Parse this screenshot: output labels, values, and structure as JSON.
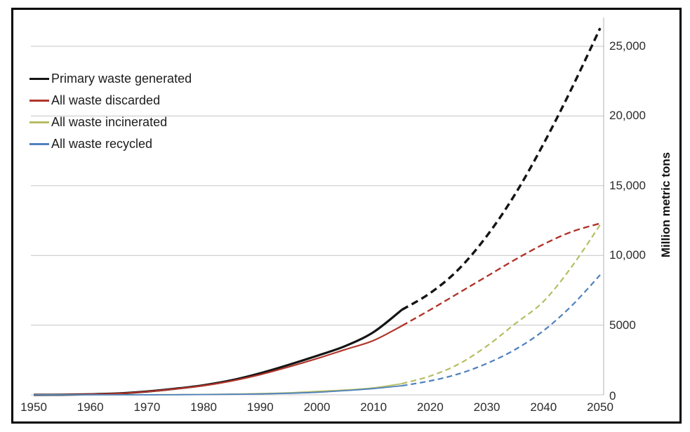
{
  "chart_data": {
    "type": "line",
    "title": "",
    "xlabel": "",
    "ylabel": "Million metric tons",
    "x": [
      1950,
      1955,
      1960,
      1965,
      1970,
      1975,
      1980,
      1985,
      1990,
      1995,
      2000,
      2005,
      2010,
      2015,
      2020,
      2025,
      2030,
      2035,
      2040,
      2045,
      2050
    ],
    "series": [
      {
        "name": "Primary waste generated",
        "color": "#141414",
        "solid_until": 2015,
        "solid_width": 3.2,
        "dash_width": 3.4,
        "dash": "10 6",
        "values": [
          1,
          8,
          40,
          100,
          240,
          440,
          690,
          1050,
          1550,
          2150,
          2800,
          3500,
          4500,
          6100,
          7300,
          9000,
          11400,
          14400,
          18000,
          22000,
          26300
        ]
      },
      {
        "name": "All waste discarded",
        "color": "#B0352B",
        "solid_until": 2015,
        "solid_width": 2.2,
        "dash_width": 2.4,
        "dash": "9 5",
        "values": [
          1,
          8,
          38,
          95,
          230,
          420,
          660,
          1000,
          1450,
          2000,
          2600,
          3250,
          3900,
          4950,
          6100,
          7300,
          8500,
          9700,
          10800,
          11700,
          12300
        ]
      },
      {
        "name": "All waste incinerated",
        "color": "#B6BE63",
        "solid_until": 2015,
        "solid_width": 1.8,
        "dash_width": 2.2,
        "dash": "8 5",
        "values": [
          0,
          0,
          1,
          3,
          8,
          15,
          30,
          55,
          90,
          150,
          250,
          350,
          500,
          800,
          1350,
          2200,
          3500,
          5100,
          6700,
          9200,
          12200
        ]
      },
      {
        "name": "All waste recycled",
        "color": "#4F81BD",
        "solid_until": 2015,
        "solid_width": 1.8,
        "dash_width": 2.2,
        "dash": "8 5",
        "values": [
          0,
          0,
          0,
          1,
          3,
          8,
          20,
          40,
          60,
          110,
          180,
          300,
          450,
          650,
          1000,
          1500,
          2250,
          3250,
          4600,
          6400,
          8600
        ]
      }
    ],
    "y_ticks": [
      {
        "value": 0,
        "label": "0"
      },
      {
        "value": 5000,
        "label": "5000"
      },
      {
        "value": 10000,
        "label": "10,000"
      },
      {
        "value": 15000,
        "label": "15,000"
      },
      {
        "value": 20000,
        "label": "20,000"
      },
      {
        "value": 25000,
        "label": "25,000"
      }
    ],
    "x_ticks": [
      {
        "value": 1950,
        "label": "1950"
      },
      {
        "value": 1960,
        "label": "1960"
      },
      {
        "value": 1970,
        "label": "1970"
      },
      {
        "value": 1980,
        "label": "1980"
      },
      {
        "value": 1990,
        "label": "1990"
      },
      {
        "value": 2000,
        "label": "2000"
      },
      {
        "value": 2010,
        "label": "2010"
      },
      {
        "value": 2020,
        "label": "2020"
      },
      {
        "value": 2030,
        "label": "2030"
      },
      {
        "value": 2040,
        "label": "2040"
      },
      {
        "value": 2050,
        "label": "2050"
      }
    ],
    "xlim": [
      1950,
      2050
    ],
    "ylim": [
      0,
      25000
    ],
    "grid": true,
    "legend_position": "top-left",
    "line_style_note": "solid = historical, dashed = projection after 2015"
  },
  "colors": {
    "gridline": "#C6C6C6",
    "axis_line": "#BDBDBD",
    "frame_border": "#000000",
    "background": "#FFFFFF",
    "tick_text": "#2B2B2B"
  }
}
